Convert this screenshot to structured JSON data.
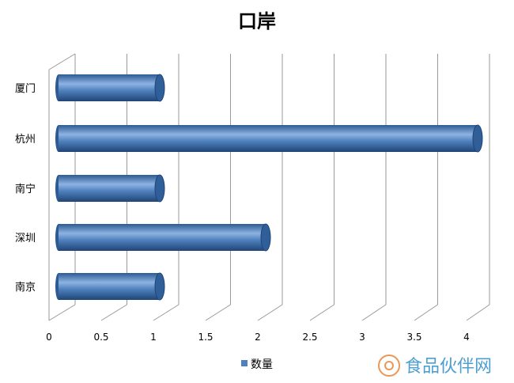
{
  "chart_data": {
    "type": "bar",
    "orientation": "horizontal",
    "style": "3d-cylinder",
    "title": "口岸",
    "categories": [
      "厦门",
      "杭州",
      "南宁",
      "深圳",
      "南京"
    ],
    "series": [
      {
        "name": "数量",
        "values": [
          1,
          4,
          1,
          2,
          1
        ],
        "color": "#4F81BD"
      }
    ],
    "xticks": [
      "0",
      "0.5",
      "1",
      "1.5",
      "2",
      "2.5",
      "3",
      "3.5",
      "4"
    ],
    "xlim": [
      0,
      4
    ],
    "grid": true,
    "legend": "bottom"
  },
  "watermark": {
    "text": "食品伙伴网",
    "color": "#2f8fc8",
    "logo_color": "#e8863a"
  }
}
